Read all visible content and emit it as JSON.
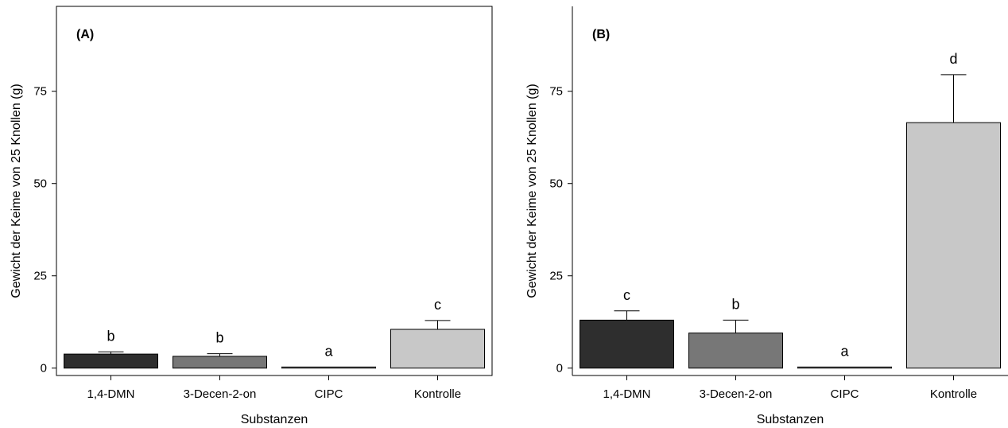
{
  "chart_data": [
    {
      "type": "bar",
      "panel_label": "(A)",
      "categories": [
        "1,4-DMN",
        "3-Decen-2-on",
        "CIPC",
        "Kontrolle"
      ],
      "values": [
        3.8,
        3.2,
        0.3,
        10.5
      ],
      "errors": [
        0.6,
        0.7,
        0,
        2.4
      ],
      "significance": [
        "b",
        "b",
        "a",
        "c"
      ],
      "colors": [
        "#2e2e2e",
        "#777777",
        "#d0d0d0",
        "#c8c8c8"
      ],
      "xlabel": "Substanzen",
      "ylabel": "Gewicht der Keime von 25 Knollen (g)",
      "ylim": [
        -2,
        98
      ],
      "yticks": [
        0,
        25,
        50,
        75
      ],
      "grid": false
    },
    {
      "type": "bar",
      "panel_label": "(B)",
      "categories": [
        "1,4-DMN",
        "3-Decen-2-on",
        "CIPC",
        "Kontrolle"
      ],
      "values": [
        13,
        9.5,
        0.3,
        66.5
      ],
      "errors": [
        2.5,
        3.5,
        0,
        13
      ],
      "significance": [
        "c",
        "b",
        "a",
        "d"
      ],
      "colors": [
        "#2e2e2e",
        "#777777",
        "#d0d0d0",
        "#c8c8c8"
      ],
      "xlabel": "Substanzen",
      "ylabel": "Gewicht der Keime von 25 Knollen (g)",
      "ylim": [
        -2,
        98
      ],
      "yticks": [
        0,
        25,
        50,
        75
      ],
      "grid": false
    }
  ]
}
